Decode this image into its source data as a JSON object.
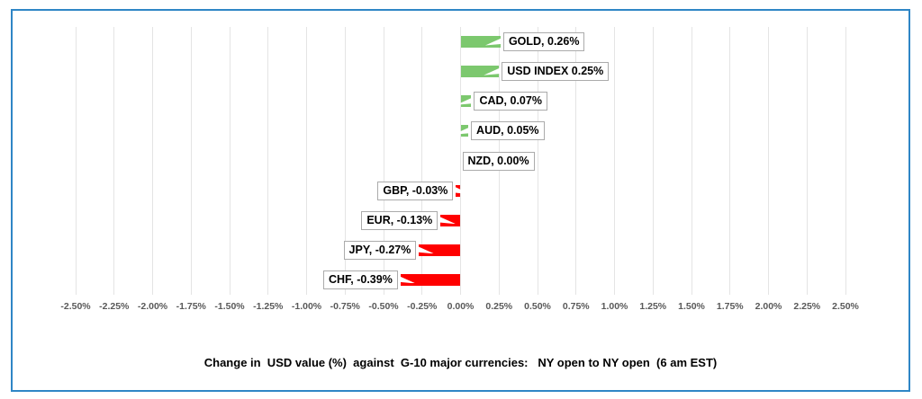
{
  "chart_data": {
    "type": "bar",
    "orientation": "horizontal",
    "title": "Change in  USD value (%)  against  G-10 major currencies:   NY open to NY open  (6 am EST)",
    "categories": [
      "GOLD",
      "USD INDEX",
      "CAD",
      "AUD",
      "NZD",
      "GBP",
      "EUR",
      "JPY",
      "CHF"
    ],
    "values": [
      0.26,
      0.25,
      0.07,
      0.05,
      0.0,
      -0.03,
      -0.13,
      -0.27,
      -0.39
    ],
    "bar_labels": [
      "GOLD, 0.26%",
      "USD INDEX 0.25%",
      "CAD, 0.07%",
      "AUD, 0.05%",
      "NZD, 0.00%",
      "GBP, -0.03%",
      "EUR, -0.13%",
      "JPY, -0.27%",
      "CHF, -0.39%"
    ],
    "xlim": [
      -2.5,
      2.5
    ],
    "tick_step": 0.25,
    "tick_labels": [
      "-2.50%",
      "-2.25%",
      "-2.00%",
      "-1.75%",
      "-1.50%",
      "-1.25%",
      "-1.00%",
      "-0.75%",
      "-0.50%",
      "-0.25%",
      "0.00%",
      "0.25%",
      "0.50%",
      "0.75%",
      "1.00%",
      "1.25%",
      "1.50%",
      "1.75%",
      "2.00%",
      "2.25%",
      "2.50%"
    ],
    "grid": true,
    "legend": "none",
    "colors": {
      "positive_bar": "#7CC86E",
      "negative_bar": "#FF0000",
      "gridline": "#E4E4E4",
      "tick_text": "#595959",
      "callout_border": "#ABABAB",
      "callout_bg": "#FFFFFF",
      "frame_border": "#2F86C6",
      "title_text": "#000000"
    }
  }
}
